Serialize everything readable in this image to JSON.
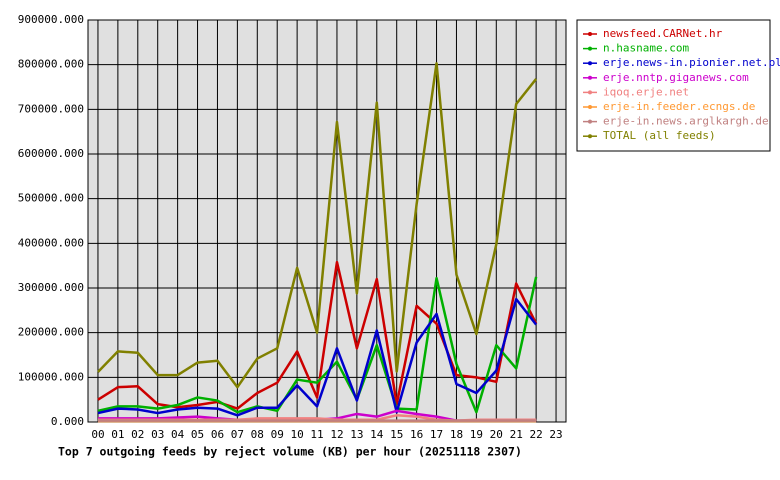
{
  "chart_data": {
    "type": "line",
    "title": "Top 7 outgoing feeds by reject volume (KB) per hour (20251118 2307)",
    "categories": [
      "00",
      "01",
      "02",
      "03",
      "04",
      "05",
      "06",
      "07",
      "08",
      "09",
      "10",
      "11",
      "12",
      "13",
      "14",
      "15",
      "16",
      "17",
      "18",
      "19",
      "20",
      "21",
      "22",
      "23"
    ],
    "ylim": [
      0,
      900000
    ],
    "yticks": [
      {
        "value": 0,
        "label": "0.000"
      },
      {
        "value": 100000,
        "label": "100000.000"
      },
      {
        "value": 200000,
        "label": "200000.000"
      },
      {
        "value": 300000,
        "label": "300000.000"
      },
      {
        "value": 400000,
        "label": "400000.000"
      },
      {
        "value": 500000,
        "label": "500000.000"
      },
      {
        "value": 600000,
        "label": "600000.000"
      },
      {
        "value": 700000,
        "label": "700000.000"
      },
      {
        "value": 800000,
        "label": "800000.000"
      },
      {
        "value": 900000,
        "label": "900000.000"
      }
    ],
    "grid": true,
    "legend": "right",
    "series": [
      {
        "name": "newsfeed.CARNet.hr",
        "color": "#cc0000",
        "values": [
          50000,
          78000,
          80000,
          40000,
          33000,
          38000,
          45000,
          30000,
          65000,
          88000,
          158000,
          55000,
          358000,
          165000,
          320000,
          40000,
          260000,
          220000,
          105000,
          100000,
          90000,
          310000,
          220000,
          null
        ]
      },
      {
        "name": "n.hasname.com",
        "color": "#00b000",
        "values": [
          25000,
          35000,
          35000,
          30000,
          38000,
          55000,
          48000,
          22000,
          35000,
          25000,
          95000,
          88000,
          135000,
          50000,
          172000,
          30000,
          28000,
          322000,
          130000,
          22000,
          172000,
          120000,
          325000,
          null
        ]
      },
      {
        "name": "erje.news-in.pionier.net.pl",
        "color": "#0000cc",
        "values": [
          20000,
          30000,
          28000,
          20000,
          28000,
          32000,
          30000,
          15000,
          32000,
          32000,
          82000,
          35000,
          165000,
          48000,
          205000,
          22000,
          178000,
          242000,
          85000,
          65000,
          115000,
          275000,
          218000,
          null
        ]
      },
      {
        "name": "erje.nntp.giganews.com",
        "color": "#cc00cc",
        "values": [
          8000,
          8000,
          8000,
          8000,
          10000,
          12000,
          8000,
          5000,
          5000,
          5000,
          5000,
          5000,
          8000,
          18000,
          12000,
          25000,
          18000,
          12000,
          3000,
          3000,
          3000,
          3000,
          3000,
          null
        ]
      },
      {
        "name": "iqoq.erje.net",
        "color": "#f08080",
        "values": [
          5000,
          5000,
          5000,
          5000,
          5000,
          5000,
          5000,
          5000,
          8000,
          8000,
          8000,
          8000,
          5000,
          5000,
          5000,
          15000,
          12000,
          5000,
          3000,
          5000,
          5000,
          5000,
          5000,
          null
        ]
      },
      {
        "name": "erje-in.feeder.ecngs.de",
        "color": "#ff9933",
        "values": [
          2000,
          2000,
          2000,
          2000,
          2000,
          2000,
          2000,
          2000,
          2000,
          2000,
          2000,
          2000,
          2000,
          2000,
          2000,
          2000,
          2000,
          2000,
          2000,
          2000,
          2000,
          2000,
          2000,
          null
        ]
      },
      {
        "name": "erje-in.news.arglkargh.de",
        "color": "#c08080",
        "values": [
          3000,
          3000,
          3000,
          3000,
          3000,
          3000,
          3000,
          3000,
          3000,
          3000,
          3000,
          3000,
          3000,
          3000,
          3000,
          3000,
          3000,
          3000,
          3000,
          3000,
          3000,
          3000,
          3000,
          null
        ]
      },
      {
        "name": "TOTAL (all feeds)",
        "color": "#808000",
        "values": [
          112000,
          158000,
          155000,
          105000,
          105000,
          133000,
          137000,
          78000,
          142000,
          165000,
          345000,
          200000,
          672000,
          288000,
          715000,
          113000,
          488000,
          803000,
          330000,
          197000,
          398000,
          712000,
          768000,
          null
        ]
      }
    ]
  }
}
